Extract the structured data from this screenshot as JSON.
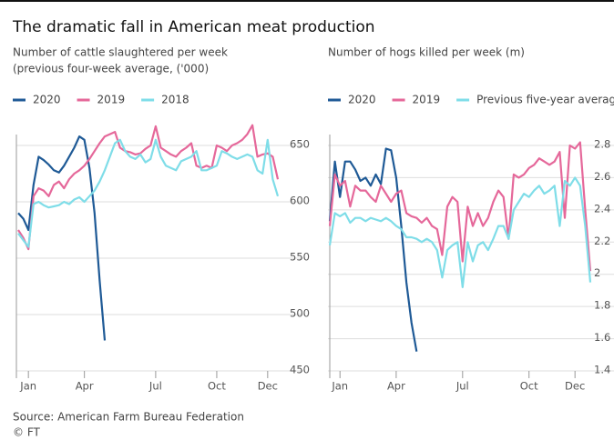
{
  "title": "The dramatic fall in American meat production",
  "source": "Source: American Farm Bureau Federation",
  "credit": "© FT",
  "chart_data": [
    {
      "type": "line",
      "subtitle": [
        "Number of cattle slaughtered per week",
        "(previous four-week average, ('000)"
      ],
      "x": [
        1,
        2,
        3,
        4,
        5,
        6,
        7,
        8,
        9,
        10,
        11,
        12,
        13,
        14,
        15,
        16,
        17,
        18,
        19,
        20,
        21,
        22,
        23,
        24,
        25,
        26,
        27,
        28,
        29,
        30,
        31,
        32,
        33,
        34,
        35,
        36,
        37,
        38,
        39,
        40,
        41,
        42,
        43,
        44,
        45,
        46,
        47,
        48,
        49,
        50,
        51,
        52
      ],
      "xlim": [
        1,
        52
      ],
      "xticks": [
        {
          "value": 3,
          "label": "Jan"
        },
        {
          "value": 14,
          "label": "Apr"
        },
        {
          "value": 28,
          "label": "Jul"
        },
        {
          "value": 40,
          "label": "Oct"
        },
        {
          "value": 50,
          "label": "Dec"
        }
      ],
      "ylim": [
        450,
        650
      ],
      "yticks": [
        450,
        500,
        550,
        600,
        650
      ],
      "grid": true,
      "series": [
        {
          "name": "2020",
          "color": "#1f5a96",
          "values": [
            590,
            585,
            575,
            615,
            640,
            637,
            633,
            628,
            626,
            632,
            640,
            648,
            658,
            655,
            630,
            590,
            530,
            477,
            null,
            null,
            null,
            null,
            null,
            null,
            null,
            null,
            null,
            null,
            null,
            null,
            null,
            null,
            null,
            null,
            null,
            null,
            null,
            null,
            null,
            null,
            null,
            null,
            null,
            null,
            null,
            null,
            null,
            null,
            null,
            null,
            null,
            null
          ]
        },
        {
          "name": "2019",
          "color": "#e5689a",
          "values": [
            575,
            568,
            558,
            605,
            612,
            610,
            605,
            615,
            618,
            612,
            620,
            625,
            628,
            632,
            638,
            645,
            652,
            658,
            660,
            662,
            648,
            645,
            644,
            642,
            643,
            647,
            650,
            667,
            648,
            645,
            642,
            640,
            645,
            648,
            652,
            632,
            630,
            632,
            630,
            650,
            648,
            645,
            650,
            652,
            655,
            660,
            668,
            640,
            642,
            643,
            640,
            620
          ]
        },
        {
          "name": "2018",
          "color": "#7fdde8",
          "values": [
            572,
            566,
            560,
            598,
            600,
            597,
            595,
            596,
            597,
            600,
            598,
            602,
            604,
            600,
            605,
            610,
            618,
            628,
            640,
            652,
            655,
            645,
            640,
            638,
            642,
            635,
            638,
            655,
            640,
            632,
            630,
            628,
            636,
            638,
            640,
            645,
            628,
            628,
            630,
            632,
            645,
            643,
            640,
            638,
            640,
            642,
            640,
            628,
            625,
            655,
            620,
            605
          ]
        }
      ]
    },
    {
      "type": "line",
      "subtitle": [
        "Number of hogs killed per week (m)"
      ],
      "x": [
        1,
        2,
        3,
        4,
        5,
        6,
        7,
        8,
        9,
        10,
        11,
        12,
        13,
        14,
        15,
        16,
        17,
        18,
        19,
        20,
        21,
        22,
        23,
        24,
        25,
        26,
        27,
        28,
        29,
        30,
        31,
        32,
        33,
        34,
        35,
        36,
        37,
        38,
        39,
        40,
        41,
        42,
        43,
        44,
        45,
        46,
        47,
        48,
        49,
        50,
        51,
        52
      ],
      "xlim": [
        1,
        52
      ],
      "xticks": [
        {
          "value": 3,
          "label": "Jan"
        },
        {
          "value": 14,
          "label": "Apr"
        },
        {
          "value": 27,
          "label": "Jul"
        },
        {
          "value": 40,
          "label": "Oct"
        },
        {
          "value": 49,
          "label": "Dec"
        }
      ],
      "ylim": [
        1.4,
        2.8
      ],
      "yticks": [
        1.4,
        1.6,
        1.8,
        2,
        2.2,
        2.4,
        2.6,
        2.8
      ],
      "grid": true,
      "series": [
        {
          "name": "2020",
          "color": "#1f5a96",
          "values": [
            2.33,
            2.7,
            2.48,
            2.7,
            2.7,
            2.65,
            2.58,
            2.6,
            2.55,
            2.62,
            2.56,
            2.78,
            2.77,
            2.6,
            2.3,
            1.95,
            1.7,
            1.52,
            null,
            null,
            null,
            null,
            null,
            null,
            null,
            null,
            null,
            null,
            null,
            null,
            null,
            null,
            null,
            null,
            null,
            null,
            null,
            null,
            null,
            null,
            null,
            null,
            null,
            null,
            null,
            null,
            null,
            null,
            null,
            null,
            null,
            null
          ]
        },
        {
          "name": "2019",
          "color": "#e5689a",
          "values": [
            2.3,
            2.62,
            2.55,
            2.58,
            2.42,
            2.55,
            2.52,
            2.52,
            2.48,
            2.45,
            2.55,
            2.5,
            2.45,
            2.5,
            2.52,
            2.38,
            2.36,
            2.35,
            2.32,
            2.35,
            2.3,
            2.28,
            2.12,
            2.42,
            2.48,
            2.45,
            2.08,
            2.42,
            2.3,
            2.38,
            2.3,
            2.35,
            2.45,
            2.52,
            2.48,
            2.22,
            2.62,
            2.6,
            2.62,
            2.66,
            2.68,
            2.72,
            2.7,
            2.68,
            2.7,
            2.76,
            2.35,
            2.8,
            2.78,
            2.82,
            2.4,
            2.02
          ]
        },
        {
          "name": "Previous five-year average",
          "color": "#7fdde8",
          "values": [
            2.18,
            2.38,
            2.36,
            2.38,
            2.32,
            2.35,
            2.35,
            2.33,
            2.35,
            2.34,
            2.33,
            2.35,
            2.33,
            2.3,
            2.28,
            2.23,
            2.23,
            2.22,
            2.2,
            2.22,
            2.2,
            2.15,
            1.98,
            2.15,
            2.18,
            2.2,
            1.92,
            2.2,
            2.08,
            2.18,
            2.2,
            2.15,
            2.22,
            2.3,
            2.3,
            2.22,
            2.4,
            2.45,
            2.5,
            2.48,
            2.52,
            2.55,
            2.5,
            2.52,
            2.55,
            2.3,
            2.58,
            2.55,
            2.6,
            2.55,
            2.3,
            1.95
          ]
        }
      ]
    }
  ]
}
